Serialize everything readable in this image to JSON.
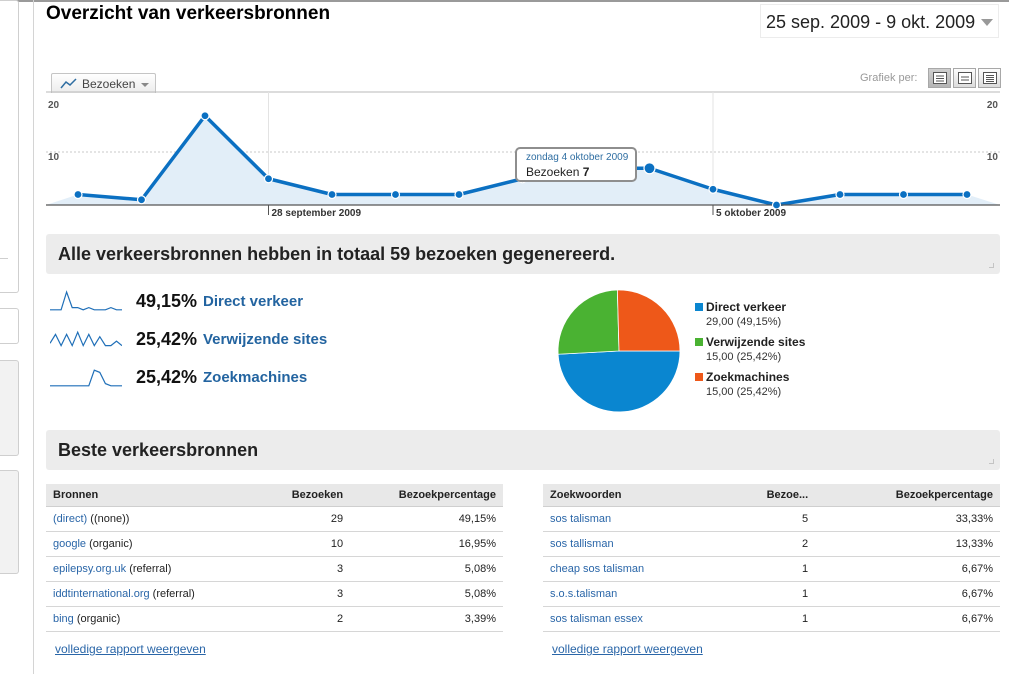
{
  "page_title": "Overzicht van verkeersbronnen",
  "date_range": "25 sep. 2009 - 9 okt. 2009",
  "graph": {
    "metric_label": "Bezoeken",
    "graph_by_label": "Grafiek per:",
    "tooltip": {
      "date": "zondag 4 oktober 2009",
      "label": "Bezoeken",
      "value": "7"
    }
  },
  "chart_data": {
    "type": "area",
    "x": [
      "25 sep. 2009",
      "26 sep. 2009",
      "27 sep. 2009",
      "28 sep. 2009",
      "29 sep. 2009",
      "30 sep. 2009",
      "1 okt. 2009",
      "2 okt. 2009",
      "3 okt. 2009",
      "4 okt. 2009",
      "5 okt. 2009",
      "6 okt. 2009",
      "7 okt. 2009",
      "8 okt. 2009",
      "9 okt. 2009"
    ],
    "series": [
      {
        "values": [
          2,
          1,
          17,
          5,
          2,
          2,
          2,
          5,
          7,
          7,
          3,
          0,
          2,
          2,
          2
        ]
      }
    ],
    "y_ticks": [
      "20",
      "10"
    ],
    "ylim": [
      0,
      20
    ],
    "x_tick_labels": [
      {
        "label": "28 september 2009",
        "index": 3
      },
      {
        "label": "5 oktober 2009",
        "index": 10
      }
    ],
    "highlight_index": 9,
    "color": "#0b70c2"
  },
  "summary": {
    "title": "Alle verkeersbronnen hebben in totaal 59 bezoeken gegenereerd.",
    "rows": [
      {
        "pct": "49,15%",
        "name": "Direct verkeer",
        "spark": [
          1,
          1,
          1,
          9,
          2,
          2,
          1,
          2,
          1,
          1,
          1,
          2,
          1,
          1
        ]
      },
      {
        "pct": "25,42%",
        "name": "Verwijzende sites",
        "spark": [
          3,
          7,
          2,
          7,
          2,
          8,
          2,
          7,
          2,
          6,
          2,
          2,
          4,
          2
        ]
      },
      {
        "pct": "25,42%",
        "name": "Zoekmachines",
        "spark": [
          1,
          1,
          1,
          1,
          1,
          1,
          1,
          1,
          8,
          7,
          2,
          1,
          1,
          1
        ]
      }
    ]
  },
  "pie": {
    "slices": [
      {
        "name": "Direct verkeer",
        "value": 29,
        "detail": "29,00 (49,15%)",
        "color": "#0a86d0"
      },
      {
        "name": "Verwijzende sites",
        "value": 15,
        "detail": "15,00 (25,42%)",
        "color": "#4ab232"
      },
      {
        "name": "Zoekmachines",
        "value": 15,
        "detail": "15,00 (25,42%)",
        "color": "#ee5819"
      }
    ]
  },
  "top_sources_title": "Beste verkeersbronnen",
  "sources_table": {
    "headers": [
      "Bronnen",
      "Bezoeken",
      "Bezoekpercentage"
    ],
    "rows": [
      {
        "link": "(direct)",
        "extra": " ((none))",
        "visits": "29",
        "pct": "49,15%"
      },
      {
        "link": "google",
        "extra": " (organic)",
        "visits": "10",
        "pct": "16,95%"
      },
      {
        "link": "epilepsy.org.uk",
        "extra": " (referral)",
        "visits": "3",
        "pct": "5,08%"
      },
      {
        "link": "iddtinternational.org",
        "extra": " (referral)",
        "visits": "3",
        "pct": "5,08%"
      },
      {
        "link": "bing",
        "extra": " (organic)",
        "visits": "2",
        "pct": "3,39%"
      }
    ],
    "full_report": "volledige rapport weergeven"
  },
  "keywords_table": {
    "headers": [
      "Zoekwoorden",
      "Bezoe...",
      "Bezoekpercentage"
    ],
    "rows": [
      {
        "link": "sos talisman",
        "visits": "5",
        "pct": "33,33%"
      },
      {
        "link": "sos tallisman",
        "visits": "2",
        "pct": "13,33%"
      },
      {
        "link": "cheap sos talisman",
        "visits": "1",
        "pct": "6,67%"
      },
      {
        "link": "s.o.s.talisman",
        "visits": "1",
        "pct": "6,67%"
      },
      {
        "link": "sos talisman essex",
        "visits": "1",
        "pct": "6,67%"
      }
    ],
    "full_report": "volledige rapport weergeven"
  }
}
